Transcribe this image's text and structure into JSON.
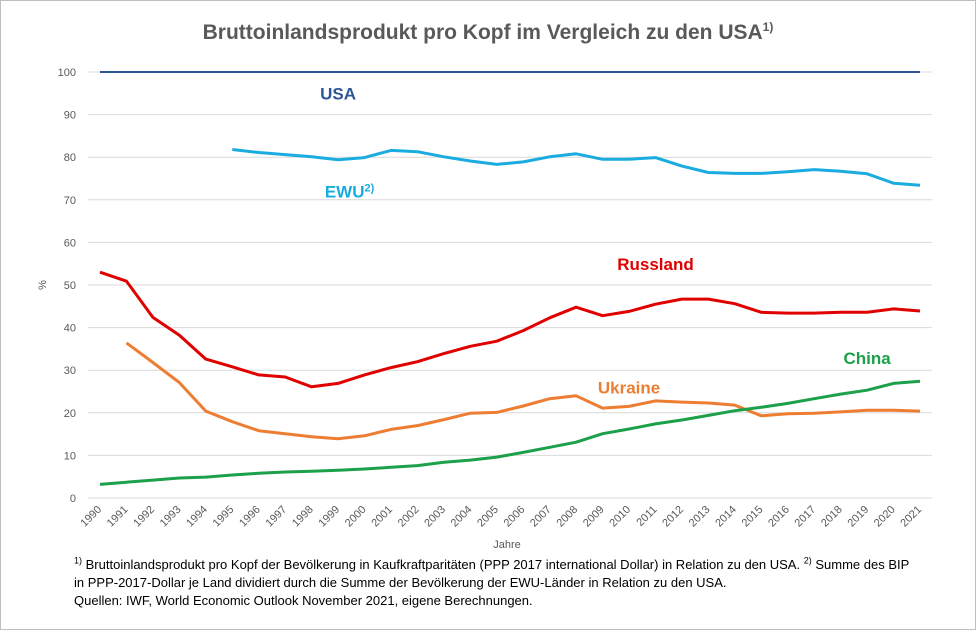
{
  "title": "Bruttoinlandsprodukt pro Kopf im Vergleich zu den USA",
  "title_sup": "1)",
  "footnotes": {
    "line1_sup": "1)",
    "line1_text": "Bruttoinlandsprodukt pro Kopf der Bevölkerung in Kaufkraftparitäten (PPP 2017 international Dollar) in Relation zu den USA.",
    "line1_sup2": "2)",
    "line1_text2": "Summe des BIP",
    "line2": "in PPP-2017-Dollar je Land dividiert durch die Summe der Bevölkerung der EWU-Länder in Relation zu den USA.",
    "line3": "Quellen: IWF, World Economic Outlook November 2021, eigene Berechnungen."
  },
  "chart_data": {
    "type": "line",
    "xlabel": "Jahre",
    "ylabel": "%",
    "ylim": [
      0,
      100
    ],
    "yticks": [
      0,
      10,
      20,
      30,
      40,
      50,
      60,
      70,
      80,
      90,
      100
    ],
    "grid": true,
    "x": [
      1990,
      1991,
      1992,
      1993,
      1994,
      1995,
      1996,
      1997,
      1998,
      1999,
      2000,
      2001,
      2002,
      2003,
      2004,
      2005,
      2006,
      2007,
      2008,
      2009,
      2010,
      2011,
      2012,
      2013,
      2014,
      2015,
      2016,
      2017,
      2018,
      2019,
      2020,
      2021
    ],
    "series": [
      {
        "name": "USA",
        "label_sup": "",
        "color": "#2e5597",
        "values": [
          100,
          100,
          100,
          100,
          100,
          100,
          100,
          100,
          100,
          100,
          100,
          100,
          100,
          100,
          100,
          100,
          100,
          100,
          100,
          100,
          100,
          100,
          100,
          100,
          100,
          100,
          100,
          100,
          100,
          100,
          100,
          100
        ]
      },
      {
        "name": "EWU",
        "label_sup": "2)",
        "color": "#1aacdf",
        "values": [
          null,
          null,
          null,
          null,
          null,
          81.8,
          81.1,
          80.6,
          80.1,
          79.4,
          79.9,
          81.6,
          81.3,
          80.1,
          79.1,
          78.3,
          78.9,
          80.1,
          80.8,
          79.5,
          79.5,
          79.9,
          77.9,
          76.4,
          76.2,
          76.2,
          76.6,
          77.1,
          76.7,
          76.1,
          73.9,
          73.4
        ]
      },
      {
        "name": "Russland",
        "label_sup": "",
        "color": "#e00000",
        "values": [
          53.0,
          50.9,
          42.4,
          38.2,
          32.6,
          30.8,
          28.9,
          28.4,
          26.1,
          26.9,
          28.9,
          30.6,
          32.0,
          33.9,
          35.6,
          36.8,
          39.3,
          42.3,
          44.8,
          42.8,
          43.8,
          45.5,
          46.7,
          46.7,
          45.6,
          43.6,
          43.4,
          43.4,
          43.6,
          43.6,
          44.4,
          43.9
        ]
      },
      {
        "name": "Ukraine",
        "label_sup": "",
        "color": "#ed7d31",
        "values": [
          null,
          36.4,
          31.8,
          27.1,
          20.4,
          17.9,
          15.8,
          15.1,
          14.4,
          13.9,
          14.6,
          16.1,
          17.0,
          18.4,
          19.9,
          20.1,
          21.6,
          23.3,
          24.0,
          21.1,
          21.5,
          22.8,
          22.5,
          22.3,
          21.8,
          19.3,
          19.8,
          19.9,
          20.2,
          20.6,
          20.6,
          20.4
        ]
      },
      {
        "name": "China",
        "label_sup": "",
        "color": "#1ca04a",
        "values": [
          3.2,
          3.7,
          4.2,
          4.7,
          4.9,
          5.4,
          5.8,
          6.1,
          6.3,
          6.5,
          6.8,
          7.2,
          7.6,
          8.4,
          8.9,
          9.6,
          10.7,
          11.9,
          13.1,
          15.1,
          16.2,
          17.4,
          18.3,
          19.4,
          20.5,
          21.3,
          22.2,
          23.3,
          24.4,
          25.3,
          26.9,
          27.4
        ]
      }
    ]
  }
}
